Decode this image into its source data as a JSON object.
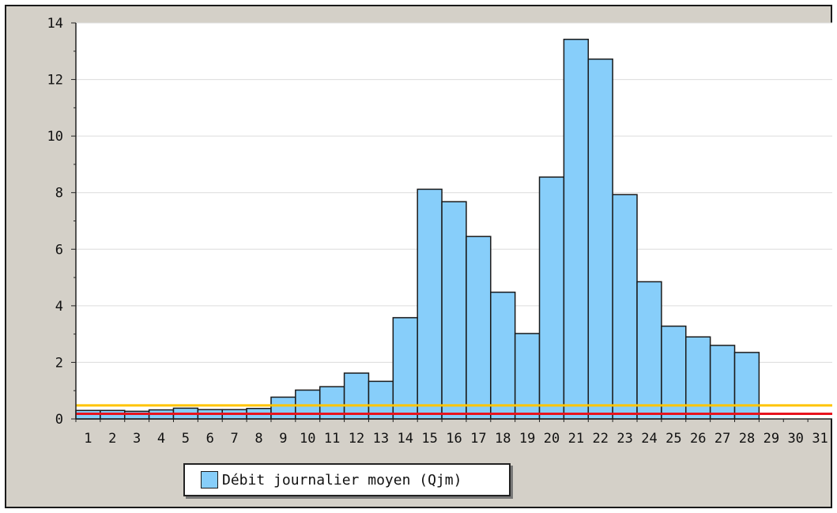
{
  "chart_data": {
    "type": "bar",
    "categories": [
      "1",
      "2",
      "3",
      "4",
      "5",
      "6",
      "7",
      "8",
      "9",
      "10",
      "11",
      "12",
      "13",
      "14",
      "15",
      "16",
      "17",
      "18",
      "19",
      "20",
      "21",
      "22",
      "23",
      "24",
      "25",
      "26",
      "27",
      "28",
      "29",
      "30",
      "31"
    ],
    "series": [
      {
        "name": "Débit journalier moyen (Qjm)",
        "values": [
          0.3,
          0.3,
          0.27,
          0.32,
          0.38,
          0.33,
          0.33,
          0.37,
          0.77,
          1.02,
          1.14,
          1.62,
          1.33,
          3.58,
          8.12,
          7.68,
          6.45,
          4.48,
          3.02,
          8.55,
          13.42,
          12.72,
          7.93,
          4.85,
          3.28,
          2.9,
          2.6,
          2.35,
          null,
          null,
          null
        ]
      }
    ],
    "reference_lines": [
      {
        "value": 0.48,
        "color": "#ffc400"
      },
      {
        "value": 0.18,
        "color": "#e8141e"
      }
    ],
    "y_ticks": [
      "0",
      "2",
      "4",
      "6",
      "8",
      "10",
      "12",
      "14"
    ],
    "ylim": [
      0,
      14
    ],
    "grid": true,
    "legend": {
      "placement": "bottom-left",
      "label": "Débit journalier moyen (Qjm)"
    },
    "colors": {
      "bar_fill": "#87cefa",
      "bar_stroke": "#1a1a1a",
      "plot_bg": "#ffffff",
      "grid": "#dcdcdc",
      "frame_bg": "#d4d0c8"
    }
  }
}
